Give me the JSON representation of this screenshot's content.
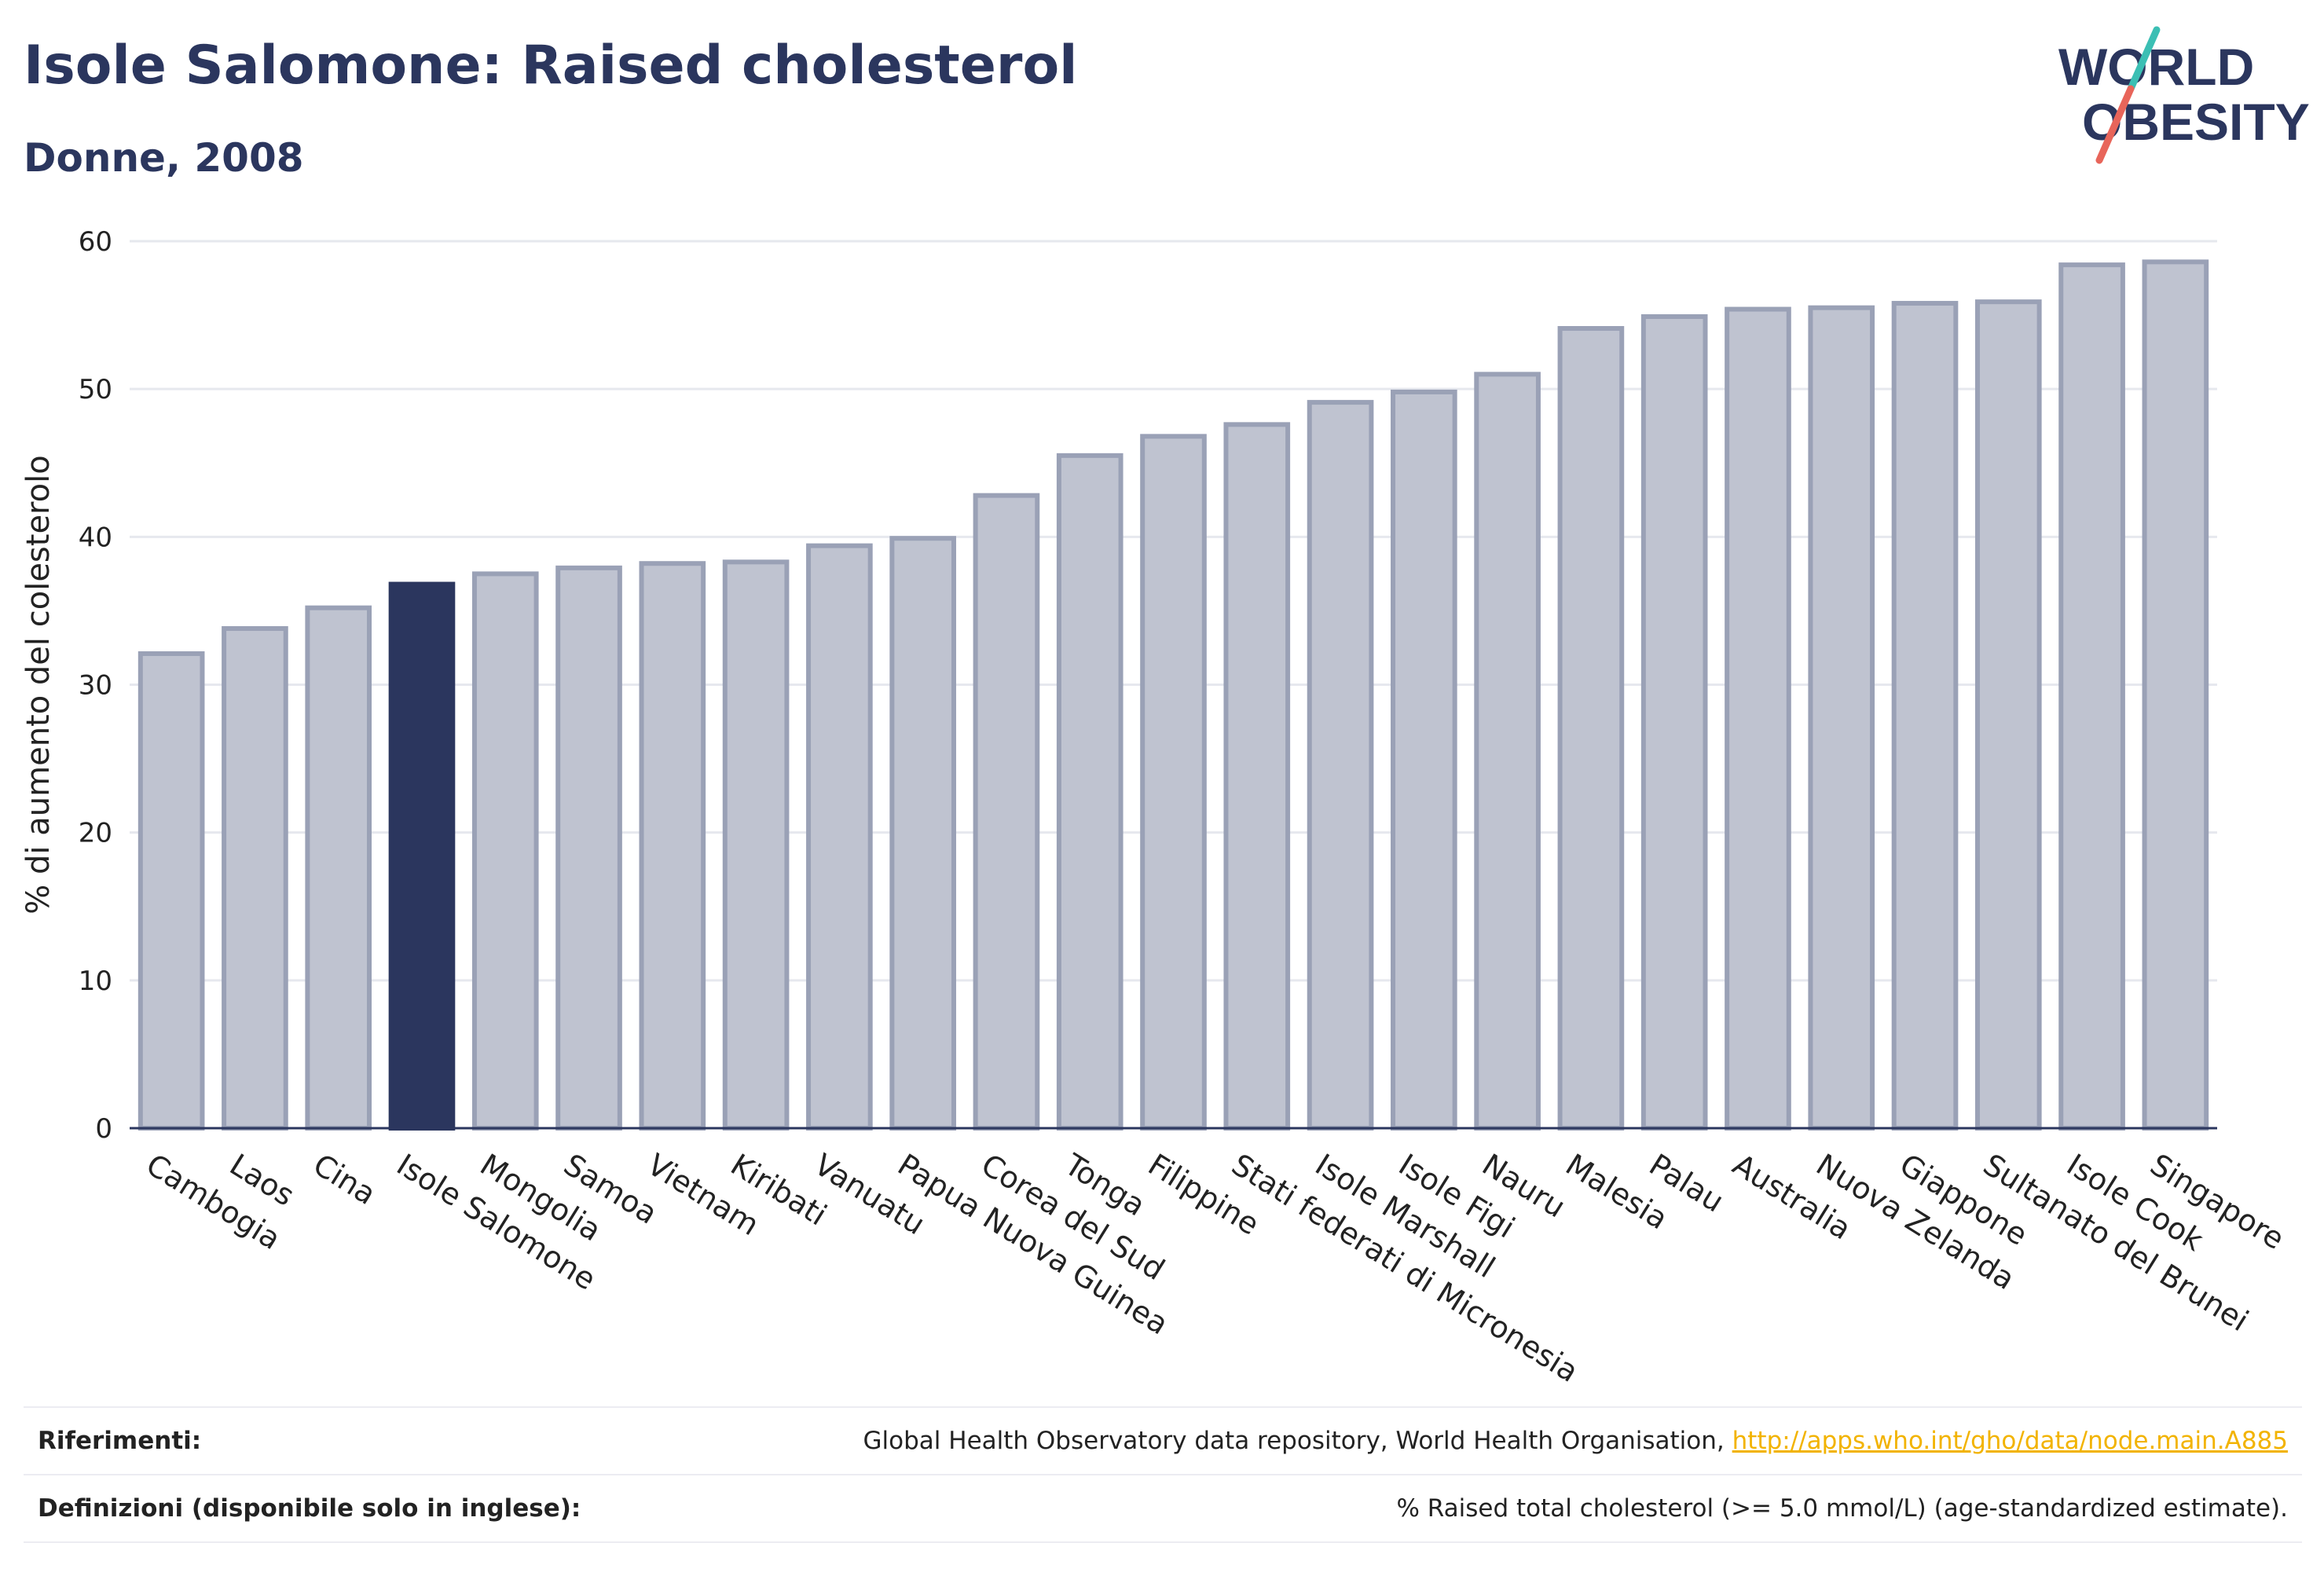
{
  "title": "Isole Salomone: Raised cholesterol",
  "subtitle": "Donne, 2008",
  "logo": {
    "line1": "WORLD",
    "line2": "OBESITY",
    "icon": "world-obesity-logo"
  },
  "colors": {
    "highlight": "#2b365e",
    "bar_fill": "#bfc3d0",
    "bar_stroke": "#9aa1b6",
    "text": "#2b365e",
    "grid": "#e6e8ee",
    "link": "#f2b300"
  },
  "chart_data": {
    "type": "bar",
    "ylabel": "% di aumento del colesterolo",
    "ylim": [
      0,
      60
    ],
    "yticks": [
      0,
      10,
      20,
      30,
      40,
      50,
      60
    ],
    "grid": true,
    "highlight_category": "Isole Salomone",
    "categories": [
      "Cambogia",
      "Laos",
      "Cina",
      "Isole Salomone",
      "Mongolia",
      "Samoa",
      "Vietnam",
      "Kiribati",
      "Vanuatu",
      "Papua Nuova Guinea",
      "Corea del Sud",
      "Tonga",
      "Filippine",
      "Stati federati di Micronesia",
      "Isole Marshall",
      "Isole Figi",
      "Nauru",
      "Malesia",
      "Palau",
      "Australia",
      "Nuova Zelanda",
      "Giappone",
      "Sultanato del Brunei",
      "Isole Cook",
      "Singapore"
    ],
    "values": [
      32.1,
      33.8,
      35.2,
      36.8,
      37.5,
      37.9,
      38.2,
      38.3,
      39.4,
      39.9,
      42.8,
      45.5,
      46.8,
      47.6,
      49.1,
      49.8,
      51.0,
      54.1,
      54.9,
      55.4,
      55.5,
      55.8,
      55.9,
      58.4,
      58.6
    ]
  },
  "footer": {
    "references_label": "Riferimenti:",
    "references_text": "Global Health Observatory data repository, World Health Organisation, ",
    "references_link": "http://apps.who.int/gho/data/node.main.A885",
    "definitions_label": "Definizioni (disponibile solo in inglese):",
    "definitions_text": "% Raised total cholesterol (>= 5.0 mmol/L) (age-standardized estimate)."
  }
}
